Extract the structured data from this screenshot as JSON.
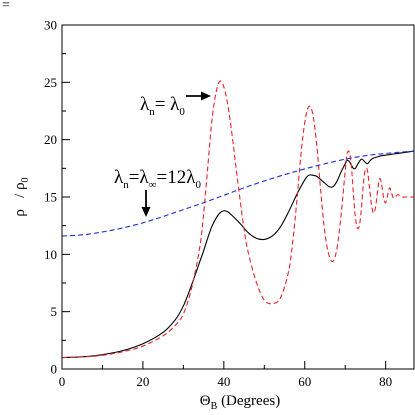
{
  "corner_mark": "=",
  "chart_data": {
    "type": "line",
    "title": "",
    "xlabel": "Θ_B (Degrees)",
    "xlabel_main": "Θ",
    "xlabel_sub": "B",
    "xlabel_rest": " (Degrees)",
    "ylabel": "ρ / ρ_0",
    "ylabel_main": "ρ   / ρ",
    "ylabel_sub": "0",
    "xlim": [
      0,
      87
    ],
    "ylim": [
      0,
      30
    ],
    "xticks": [
      0,
      20,
      40,
      60,
      80
    ],
    "yticks": [
      0,
      5,
      10,
      15,
      20,
      25,
      30
    ],
    "grid": false,
    "legend": "none",
    "series": [
      {
        "color": "#000000",
        "dash": "solid",
        "x": [
          0,
          5,
          10,
          15,
          20,
          25,
          28,
          30,
          32,
          34,
          35,
          36,
          37,
          38,
          39,
          40,
          41,
          42,
          44,
          46,
          48,
          50,
          52,
          54,
          56,
          58,
          60,
          61,
          62,
          63,
          64,
          65,
          66,
          67,
          68,
          69,
          70,
          70.5,
          71,
          71.5,
          72,
          72.5,
          73,
          73.5,
          74,
          74.5,
          75,
          75.5,
          76,
          76.5,
          77,
          78,
          79,
          80,
          81,
          82,
          83,
          84,
          85,
          86,
          87
        ],
        "y": [
          1,
          1.06,
          1.25,
          1.6,
          2.2,
          3.2,
          4.3,
          5.5,
          7.3,
          9.3,
          10.3,
          11.4,
          12.4,
          13.1,
          13.6,
          13.8,
          13.7,
          13.4,
          12.7,
          11.9,
          11.4,
          11.3,
          11.6,
          12.4,
          13.7,
          15.2,
          16.5,
          16.9,
          16.9,
          16.8,
          16.5,
          16.2,
          15.9,
          15.9,
          16.4,
          17.2,
          17.9,
          18.2,
          18.1,
          17.8,
          17.5,
          17.5,
          17.8,
          18.1,
          18.3,
          18.2,
          18.0,
          17.9,
          18.1,
          18.3,
          18.4,
          18.5,
          18.6,
          18.65,
          18.7,
          18.75,
          18.8,
          18.85,
          18.9,
          18.95,
          19.0
        ]
      },
      {
        "color": "#e8232a",
        "dash": "dashed",
        "x": [
          0,
          5,
          10,
          15,
          20,
          25,
          28,
          30,
          32,
          34,
          35,
          36,
          37,
          38,
          39,
          40,
          41,
          42,
          43,
          44,
          45,
          46,
          48,
          50,
          52,
          54,
          56,
          57,
          58,
          59,
          60,
          61,
          62,
          63,
          64,
          65,
          66,
          67,
          68,
          69,
          70,
          70.5,
          71,
          71.5,
          72,
          72.5,
          73,
          73.5,
          74,
          74.5,
          75,
          75.5,
          76,
          76.5,
          77,
          77.5,
          78,
          78.5,
          79,
          79.5,
          80,
          80.5,
          81,
          81.5,
          82,
          83,
          84,
          85,
          86,
          87
        ],
        "y": [
          1,
          1.05,
          1.2,
          1.5,
          2,
          2.9,
          3.8,
          4.8,
          7,
          10.5,
          13.5,
          17.5,
          21.5,
          24,
          25.1,
          24.6,
          23,
          20.5,
          17.6,
          14.8,
          12.2,
          10.2,
          7.6,
          6.0,
          5.7,
          6.2,
          8.5,
          11,
          14.5,
          18.5,
          21.5,
          22.9,
          22.2,
          19.4,
          15.3,
          11.8,
          9.9,
          9.4,
          10.6,
          13.5,
          17.3,
          18.8,
          18.9,
          17.8,
          15.4,
          13.3,
          12.3,
          12.5,
          14,
          16.2,
          17.4,
          17.3,
          15.8,
          14.3,
          13.6,
          14.1,
          15.5,
          16.6,
          16.1,
          14.9,
          14.5,
          15.2,
          15.8,
          15.3,
          14.9,
          15.2,
          15.0,
          15.0,
          15.0,
          15.0
        ]
      },
      {
        "color": "#1f2fd6",
        "dash": "dashed",
        "x": [
          0,
          5,
          10,
          15,
          20,
          25,
          30,
          35,
          40,
          45,
          50,
          55,
          60,
          65,
          70,
          75,
          80,
          85,
          87
        ],
        "y": [
          11.6,
          11.7,
          11.95,
          12.3,
          12.75,
          13.3,
          13.9,
          14.5,
          15.15,
          15.8,
          16.4,
          16.95,
          17.45,
          17.9,
          18.3,
          18.6,
          18.8,
          18.95,
          19.0
        ]
      }
    ],
    "annotations": [
      {
        "id": "narrow",
        "lambda": "λ",
        "sub1": "n",
        "mid": "= λ",
        "sub2": "0",
        "rest": "",
        "arrow": "right"
      },
      {
        "id": "wide",
        "lambda": "λ",
        "sub1": "n",
        "mid": "=λ",
        "sub2": "∞",
        "rest": "=12λ",
        "sub3": "0",
        "arrow": "down"
      }
    ]
  }
}
